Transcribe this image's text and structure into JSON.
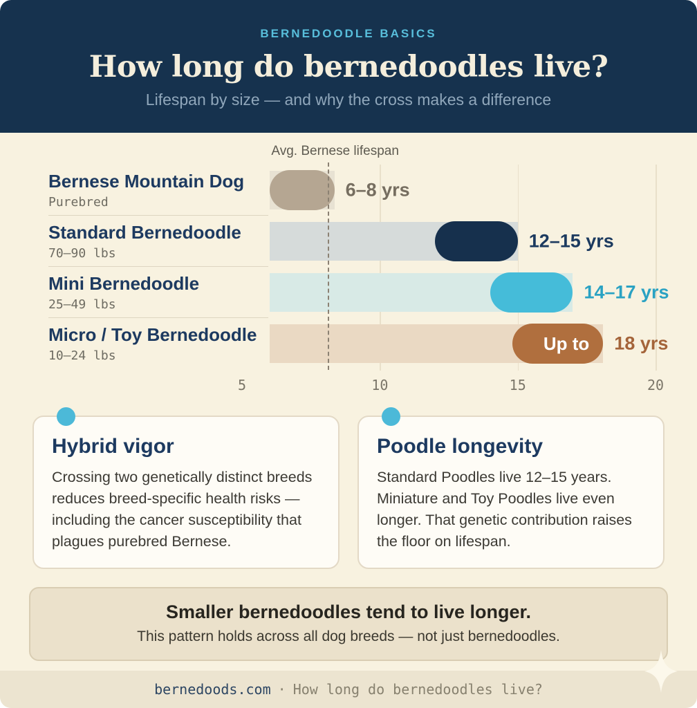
{
  "header": {
    "eyebrow": "BERNEDOODLE BASICS",
    "title": "How long do bernedoodles live?",
    "subtitle": "Lifespan by size — and why the cross makes a difference"
  },
  "chart_data": {
    "type": "bar",
    "orientation": "horizontal",
    "x_range": [
      5,
      20.5
    ],
    "x_ticks": [
      5,
      10,
      15,
      20
    ],
    "gridlines": [
      10,
      15,
      20
    ],
    "grid": "vertical-faint",
    "avg_note": "Avg. Bernese lifespan",
    "avg_bernese_marker": 8.1,
    "rows": [
      {
        "label": "Bernese Mountain Dog",
        "sublabel": "Purebred",
        "track": [
          6,
          8.35
        ],
        "range": [
          6,
          8.35
        ],
        "value_label": "6–8 yrs",
        "track_color": "#e8e2d3",
        "pill_color": "#b5a692",
        "value_color": "#766e60"
      },
      {
        "label": "Standard Bernedoodle",
        "sublabel": "70–90 lbs",
        "track": [
          6,
          15
        ],
        "range": [
          12,
          15
        ],
        "value_label": "12–15 yrs",
        "track_color": "#d6dbda",
        "pill_color": "#16304d",
        "value_color": "#1c3a5f"
      },
      {
        "label": "Mini Bernedoodle",
        "sublabel": "25–49 lbs",
        "track": [
          6,
          17
        ],
        "range": [
          14,
          17
        ],
        "value_label": "14–17 yrs",
        "track_color": "#d8eae6",
        "pill_color": "#45bcd9",
        "value_color": "#2aa2c3"
      },
      {
        "label": "Micro / Toy Bernedoodle",
        "sublabel": "10–24 lbs",
        "track": [
          6,
          18.1
        ],
        "range": [
          14.8,
          18.1
        ],
        "pill_text": "Up to",
        "value_label": "18 yrs",
        "track_color": "#ead9c3",
        "pill_color": "#b06f3e",
        "value_color": "#a4643a"
      }
    ]
  },
  "cards": {
    "accent_color": "#4cb9d8",
    "items": [
      {
        "title": "Hybrid vigor",
        "body": "Crossing two genetically distinct breeds reduces breed-specific health risks — including the cancer susceptibility that plagues purebred Bernese."
      },
      {
        "title": "Poodle longevity",
        "body": "Standard Poodles live 12–15 years. Miniature and Toy Poodles live even longer. That genetic contribution raises the floor on lifespan."
      }
    ]
  },
  "banner": {
    "title": "Smaller bernedoodles tend to live longer.",
    "subtitle": "This pattern holds across all dog breeds — not just bernedoodles."
  },
  "footer": {
    "site": "bernedoods.com",
    "separator": "·",
    "query": "How long do bernedoodles live?"
  },
  "theme": {
    "header_bg": "#16324e",
    "page_bg": "#f8f2e0",
    "eyebrow_color": "#58bedb",
    "title_color": "#f4eedc",
    "footer_bg": "#ece4d0"
  }
}
